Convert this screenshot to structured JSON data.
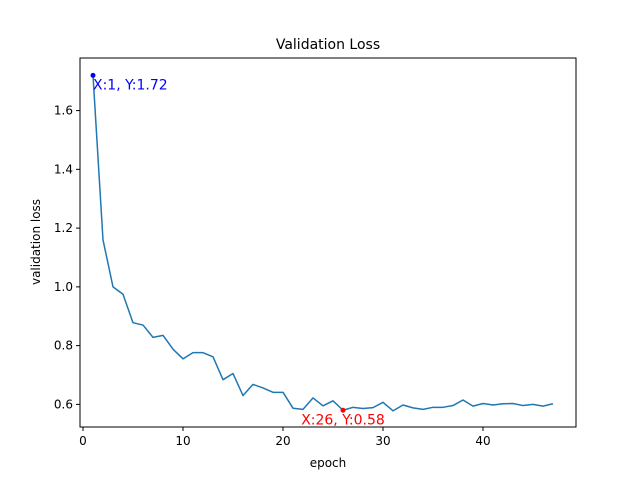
{
  "chart_data": {
    "type": "line",
    "title": "Validation Loss",
    "xlabel": "epoch",
    "ylabel": "validation loss",
    "xlim": [
      -0.3,
      49.3
    ],
    "ylim": [
      0.523,
      1.779
    ],
    "xticks": [
      0,
      10,
      20,
      30,
      40
    ],
    "yticks": [
      0.6,
      0.8,
      1.0,
      1.2,
      1.4,
      1.6
    ],
    "series": [
      {
        "color": "#1f77b4",
        "x": [
          1,
          2,
          3,
          4,
          5,
          6,
          7,
          8,
          9,
          10,
          11,
          12,
          13,
          14,
          15,
          16,
          17,
          18,
          19,
          20,
          21,
          22,
          23,
          24,
          25,
          26,
          27,
          28,
          29,
          30,
          31,
          32,
          33,
          34,
          35,
          36,
          37,
          38,
          39,
          40,
          41,
          42,
          43,
          44,
          45,
          46,
          47
        ],
        "y": [
          1.72,
          1.16,
          1.0,
          0.975,
          0.878,
          0.87,
          0.828,
          0.835,
          0.788,
          0.755,
          0.776,
          0.776,
          0.762,
          0.684,
          0.705,
          0.63,
          0.668,
          0.656,
          0.641,
          0.641,
          0.587,
          0.583,
          0.622,
          0.595,
          0.612,
          0.58,
          0.59,
          0.586,
          0.589,
          0.607,
          0.578,
          0.598,
          0.588,
          0.583,
          0.59,
          0.59,
          0.596,
          0.615,
          0.594,
          0.603,
          0.598,
          0.602,
          0.603,
          0.596,
          0.6,
          0.594,
          0.602
        ]
      }
    ],
    "annotations": [
      {
        "x": 1,
        "y": 1.72,
        "text": "X:1, Y:1.72",
        "color": "#0000ff"
      },
      {
        "x": 26,
        "y": 0.58,
        "text": "X:26, Y:0.58",
        "color": "#ff0000"
      }
    ]
  }
}
